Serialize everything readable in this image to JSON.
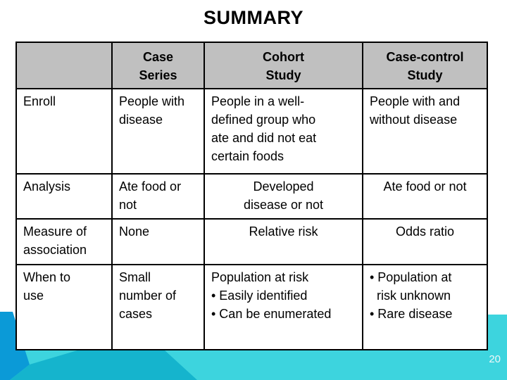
{
  "slide": {
    "title": "SUMMARY",
    "page_number": "20"
  },
  "table": {
    "header": {
      "row_label": "",
      "case_series": "Case\nSeries",
      "cohort_study": "Cohort\nStudy",
      "case_control": "Case-control\nStudy"
    },
    "rows": [
      {
        "label": "Enroll",
        "case_series": "People with\ndisease",
        "cohort_study": "People in a well-\ndefined group who\nate and did not eat\ncertain foods",
        "case_control": "People with and\nwithout disease"
      },
      {
        "label": "Analysis",
        "case_series": "Ate food or\nnot",
        "cohort_study": "Developed\ndisease or not",
        "case_control": "Ate food or not"
      },
      {
        "label": "Measure of\nassociation",
        "case_series": "None",
        "cohort_study": "Relative risk",
        "case_control": "Odds ratio"
      },
      {
        "label": "When to\nuse",
        "case_series": "Small\nnumber of\ncases",
        "cohort_study": "Population at risk\n• Easily identified\n• Can be enumerated",
        "case_control": "• Population at\n  risk unknown\n• Rare disease"
      }
    ]
  },
  "colors": {
    "header_bg": "#c0c0c0",
    "table_border": "#000000",
    "footer_blue": "#0b9ad7",
    "footer_teal_mid": "#15b4cd",
    "footer_teal_light": "#3dd4de",
    "page_number_color": "#eef8f9"
  }
}
